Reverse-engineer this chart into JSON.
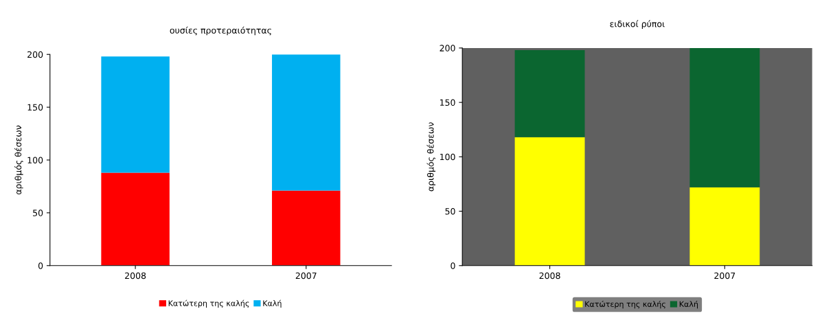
{
  "chart_data": [
    {
      "type": "bar",
      "title": "ουσίες προτεραιότητας",
      "ylabel": "αριθμός θέσεων",
      "categories": [
        "2008",
        "2007"
      ],
      "stacked": true,
      "ylim": [
        0,
        200
      ],
      "yticks": [
        0,
        50,
        100,
        150,
        200
      ],
      "grid": false,
      "legend": "bottom",
      "series": [
        {
          "name": "Κατώτερη της καλής",
          "color": "#ff0000",
          "values": [
            88,
            71
          ]
        },
        {
          "name": "Καλή",
          "color": "#00b0f0",
          "values": [
            110,
            129
          ]
        }
      ]
    },
    {
      "type": "bar",
      "title": "ειδικοί ρύποι",
      "ylabel": "αριθμός θέσεων",
      "categories": [
        "2008",
        "2007"
      ],
      "stacked": true,
      "ylim": [
        0,
        200
      ],
      "yticks": [
        0,
        50,
        100,
        150,
        200
      ],
      "grid": false,
      "legend": "bottom",
      "series": [
        {
          "name": "Κατώτερη της καλής",
          "color": "#ffff00",
          "values": [
            118,
            72
          ]
        },
        {
          "name": "Καλή",
          "color": "#0b6630",
          "values": [
            80,
            128
          ]
        }
      ]
    }
  ]
}
